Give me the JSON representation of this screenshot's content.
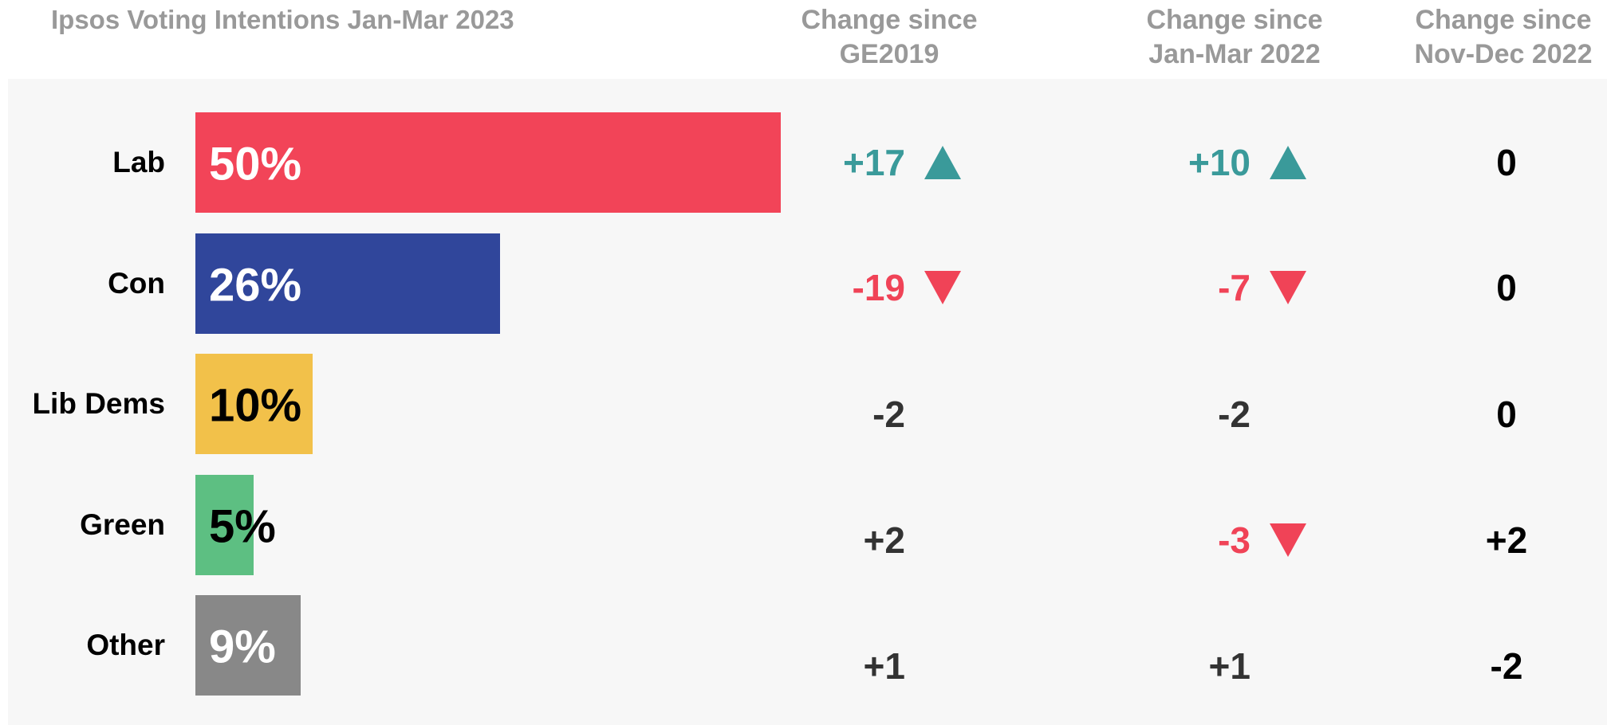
{
  "chart_data": {
    "type": "bar",
    "title": "Ipsos Voting Intentions Jan-Mar 2023",
    "categories": [
      "Lab",
      "Con",
      "Lib Dems",
      "Green",
      "Other"
    ],
    "values": [
      50,
      26,
      10,
      5,
      9
    ],
    "value_labels": [
      "50%",
      "26%",
      "10%",
      "5%",
      "9%"
    ],
    "colors": [
      "#f24458",
      "#30469b",
      "#f2c14a",
      "#5dbf82",
      "#888888"
    ],
    "label_colors": [
      "#ffffff",
      "#ffffff",
      "#000000",
      "#000000",
      "#ffffff"
    ],
    "up_color": "#3a9a9a",
    "down_color": "#f04357",
    "columns": [
      {
        "header": "Change since GE2019",
        "text_color": "#333333",
        "values": [
          "+17",
          "-19",
          "-2",
          "+2",
          "+1"
        ],
        "arrows": [
          "up",
          "down",
          null,
          null,
          null
        ]
      },
      {
        "header": "Change since Jan-Mar 2022",
        "text_color": "#333333",
        "values": [
          "+10",
          "-7",
          "-2",
          "-3",
          "+1"
        ],
        "arrows": [
          "up",
          "down",
          null,
          "down",
          null
        ]
      },
      {
        "header": "Change since Nov-Dec 2022",
        "text_color": "#000000",
        "values": [
          "0",
          "0",
          "0",
          "+2",
          "-2"
        ],
        "arrows": [
          null,
          null,
          null,
          null,
          null
        ]
      }
    ]
  }
}
